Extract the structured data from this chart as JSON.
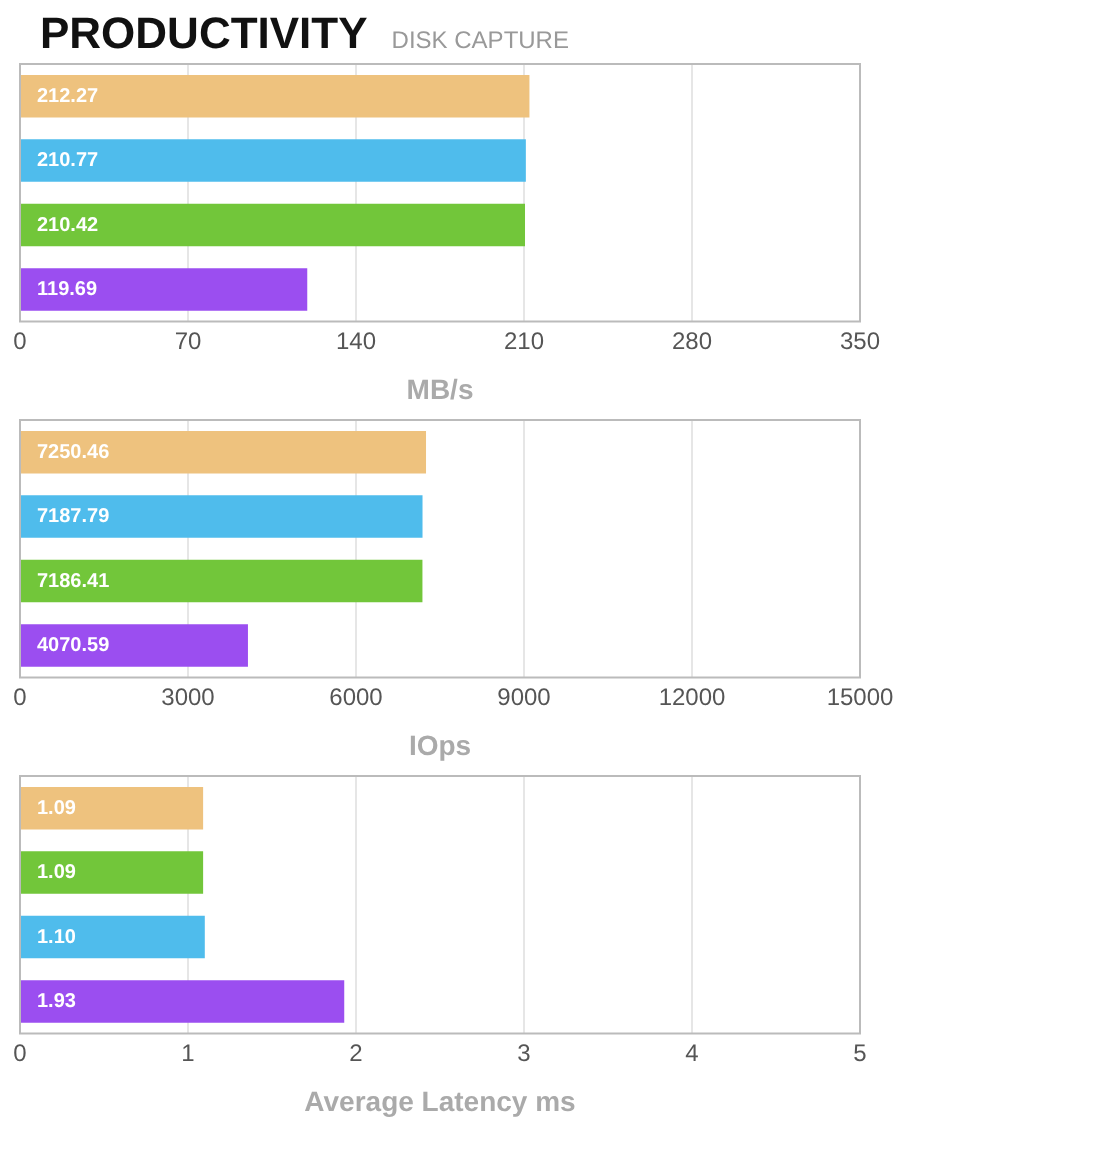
{
  "chart_data": [
    {
      "type": "bar",
      "title": "PRODUCTIVITY",
      "subtitle": "DISK CAPTURE",
      "orientation": "horizontal",
      "categories": [
        null,
        null,
        null,
        null
      ],
      "values": [
        212.27,
        210.77,
        210.42,
        119.69
      ],
      "colors": [
        "#eec27e",
        "#4fbcec",
        "#72c63a",
        "#9b4ef0"
      ],
      "xlim": [
        0,
        350
      ],
      "xticks": [
        0,
        70,
        140,
        210,
        280,
        350
      ],
      "xlabel": "MB/s",
      "grid": "x",
      "data_labels": true
    },
    {
      "type": "bar",
      "orientation": "horizontal",
      "categories": [
        null,
        null,
        null,
        null
      ],
      "values": [
        7250.46,
        7187.79,
        7186.41,
        4070.59
      ],
      "colors": [
        "#eec27e",
        "#4fbcec",
        "#72c63a",
        "#9b4ef0"
      ],
      "xlim": [
        0,
        15000
      ],
      "xticks": [
        0,
        3000,
        6000,
        9000,
        12000,
        15000
      ],
      "xlabel": "IOps",
      "grid": "x",
      "data_labels": true
    },
    {
      "type": "bar",
      "orientation": "horizontal",
      "categories": [
        null,
        null,
        null,
        null
      ],
      "values": [
        1.09,
        1.09,
        1.1,
        1.93
      ],
      "value_labels": [
        "1.09",
        "1.09",
        "1.10",
        "1.93"
      ],
      "colors": [
        "#eec27e",
        "#72c63a",
        "#4fbcec",
        "#9b4ef0"
      ],
      "xlim": [
        0,
        5
      ],
      "xticks": [
        0,
        1,
        2,
        3,
        4,
        5
      ],
      "xlabel": "Average Latency ms",
      "grid": "x",
      "data_labels": true
    }
  ]
}
